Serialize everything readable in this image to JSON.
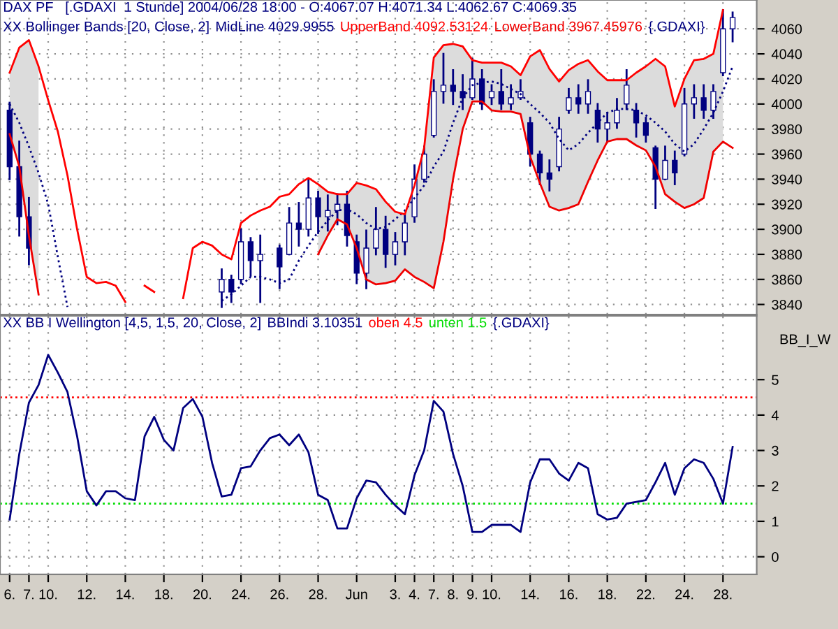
{
  "chart_data": [
    {
      "type": "candlestick",
      "title": "DAX PF   [.GDAXI  1 Stunde] 2004/06/28 18:00 - O:4067.07 H:4071.34 L:4062.67 C:4069.35",
      "subtitle": "XX Bollinger Bands [20, Close, 2]",
      "tick_labels": "y",
      "ylim": [
        3832,
        4083
      ],
      "yticks": [
        3840,
        3860,
        3880,
        3900,
        3920,
        3940,
        3960,
        3980,
        4000,
        4020,
        4040,
        4060
      ],
      "grid": true,
      "legend": "top",
      "series": [
        {
          "type": "candlestick",
          "color": "#000080",
          "ohlc": [
            [
              3995,
              4001,
              3940,
              3950
            ],
            [
              3950,
              3970,
              3895,
              3910
            ],
            [
              3910,
              3925,
              3872,
              3885
            ],
            null,
            null,
            null,
            null,
            null,
            null,
            null,
            null,
            null,
            null,
            null,
            null,
            null,
            null,
            null,
            null,
            null,
            null,
            null,
            [
              3850,
              3868,
              3838,
              3860
            ],
            [
              3860,
              3863,
              3842,
              3850
            ],
            [
              3860,
              3900,
              3857,
              3890
            ],
            [
              3890,
              3893,
              3863,
              3875
            ],
            [
              3875,
              3895,
              3842,
              3880
            ],
            null,
            [
              3885,
              3887,
              3853,
              3870
            ],
            [
              3880,
              3917,
              3880,
              3905
            ],
            [
              3905,
              3921,
              3887,
              3900
            ],
            [
              3900,
              3940,
              3895,
              3925
            ],
            [
              3925,
              3930,
              3897,
              3910
            ],
            [
              3910,
              3927,
              3899,
              3915
            ],
            [
              3915,
              3928,
              3904,
              3920
            ],
            [
              3920,
              3930,
              3887,
              3895
            ],
            [
              3890,
              3895,
              3857,
              3865
            ],
            [
              3865,
              3899,
              3853,
              3885
            ],
            [
              3885,
              3917,
              3880,
              3900
            ],
            [
              3900,
              3910,
              3870,
              3880
            ],
            [
              3880,
              3897,
              3872,
              3890
            ],
            [
              3890,
              3912,
              3880,
              3905
            ],
            [
              3910,
              3951,
              3906,
              3940
            ],
            [
              3940,
              3966,
              3938,
              3960
            ],
            [
              3975,
              4019,
              3974,
              4010
            ],
            [
              4010,
              4040,
              4001,
              4015
            ],
            [
              4015,
              4027,
              4000,
              4010
            ],
            [
              4010,
              4023,
              3996,
              4005
            ],
            [
              4005,
              4036,
              4004,
              4020
            ],
            [
              4020,
              4027,
              3996,
              4000
            ],
            [
              4005,
              4015,
              4000,
              4010
            ],
            [
              4010,
              4027,
              3996,
              4000
            ],
            [
              4000,
              4015,
              3996,
              4005
            ],
            [
              4005,
              4019,
              4004,
              4010
            ],
            [
              3985,
              3989,
              3951,
              3960
            ],
            [
              3960,
              3962,
              3936,
              3945
            ],
            [
              3945,
              3955,
              3931,
              3940
            ],
            [
              3950,
              3989,
              3947,
              3980
            ],
            [
              3995,
              4012,
              3993,
              4005
            ],
            [
              4005,
              4015,
              3993,
              4000
            ],
            [
              4000,
              4019,
              3993,
              4010
            ],
            [
              3995,
              4000,
              3970,
              3980
            ],
            [
              3980,
              3993,
              3970,
              3985
            ],
            [
              3985,
              4004,
              3981,
              3995
            ],
            [
              4000,
              4027,
              3996,
              4015
            ],
            [
              3995,
              4000,
              3974,
              3985
            ],
            [
              3985,
              3989,
              3970,
              3975
            ],
            [
              3965,
              3966,
              3917,
              3940
            ],
            [
              3940,
              3966,
              3940,
              3955
            ],
            [
              3955,
              3962,
              3936,
              3945
            ],
            [
              3960,
              4012,
              3959,
              4000
            ],
            [
              4000,
              4015,
              3989,
              4005
            ],
            [
              4005,
              4015,
              3989,
              3995
            ],
            [
              3995,
              4015,
              3989,
              4010
            ],
            [
              4025,
              4075,
              4023,
              4060
            ],
            [
              4060,
              4073,
              4050,
              4069
            ]
          ]
        },
        {
          "type": "line",
          "name": "MidLine 4029.9955",
          "color": "#000080",
          "line_style": "dotted",
          "values": [
            4000,
            3985,
            3966,
            3945,
            3920,
            3878,
            3838,
            null,
            null,
            null,
            null,
            null,
            null,
            null,
            null,
            null,
            null,
            null,
            null,
            null,
            null,
            null,
            3843,
            3848,
            3855,
            3862,
            3862,
            3860,
            3857,
            3860,
            3875,
            3887,
            3898,
            3907,
            3915,
            3916,
            3912,
            3905,
            3900,
            3902,
            3908,
            3915,
            3925,
            3935,
            3950,
            3962,
            3985,
            4005,
            4015,
            4017,
            4018,
            4016,
            4012,
            4008,
            4000,
            3993,
            3985,
            3972,
            3963,
            3968,
            3977,
            3985,
            3993,
            3996,
            3996,
            3995,
            3991,
            3985,
            3978,
            3968,
            3962,
            3968,
            3980,
            3993,
            4010,
            4030
          ],
          "upper": [
            4025,
            4045,
            4051,
            4030,
            null,
            null,
            null,
            null,
            null,
            null,
            null,
            null,
            null,
            null,
            null,
            null,
            null,
            null,
            null,
            null,
            null,
            null,
            null,
            null,
            null,
            null,
            null,
            null,
            null,
            null,
            null,
            null,
            3936,
            3930,
            3928,
            3928,
            3937,
            3935,
            3932,
            3922,
            3914,
            3912,
            3935,
            3965,
            4037,
            4047,
            4048,
            4046,
            4035,
            4033,
            4033,
            4033,
            4030,
            4023,
            4038,
            4043,
            4028,
            4018,
            4027,
            4032,
            4035,
            4026,
            4019,
            4019,
            4019,
            4025,
            4030,
            4036,
            4030,
            3998,
            4020,
            4035,
            4036,
            4040,
            4075,
            null
          ],
          "lower": [
            3976,
            3950,
            3895,
            3848,
            null,
            null,
            null,
            null,
            null,
            null,
            null,
            null,
            null,
            null,
            null,
            null,
            null,
            null,
            null,
            null,
            null,
            null,
            null,
            null,
            null,
            null,
            null,
            null,
            null,
            null,
            null,
            null,
            3880,
            3895,
            3908,
            3904,
            3885,
            3860,
            3856,
            3857,
            3859,
            3868,
            3862,
            3858,
            3853,
            3890,
            3940,
            3980,
            4002,
            4002,
            3995,
            3994,
            3994,
            3992,
            3958,
            3937,
            3918,
            3915,
            3917,
            3920,
            3938,
            3955,
            3970,
            3972,
            3972,
            3967,
            3963,
            3950,
            3928,
            3922,
            3917,
            3920,
            3925,
            3962,
            3970,
            null
          ]
        },
        {
          "type": "line",
          "name": "UpperBand 4092.53124",
          "color": "#ff0000",
          "values": [
            4025,
            4045,
            4051,
            4030,
            4003,
            3978,
            3943,
            3900,
            3862,
            3857,
            3858,
            3855,
            3842,
            null,
            3855,
            3850,
            null,
            null,
            3845,
            3885,
            3890,
            3887,
            3880,
            3876,
            3905,
            3911,
            3915,
            3918,
            3926,
            3928,
            3936,
            3941,
            3936,
            3930,
            3928,
            3928,
            3937,
            3935,
            3932,
            3922,
            3914,
            3912,
            3935,
            3965,
            4037,
            4047,
            4048,
            4046,
            4035,
            4033,
            4033,
            4033,
            4030,
            4023,
            4038,
            4043,
            4028,
            4018,
            4027,
            4032,
            4035,
            4026,
            4019,
            4019,
            4019,
            4025,
            4030,
            4036,
            4030,
            3998,
            4020,
            4035,
            4036,
            4040,
            4075,
            null
          ]
        },
        {
          "type": "line",
          "name": "LowerBand 3967.45976",
          "color": "#f00000",
          "values": [
            3976,
            3950,
            3895,
            3848,
            null,
            null,
            null,
            null,
            null,
            null,
            null,
            null,
            null,
            null,
            null,
            null,
            null,
            null,
            null,
            null,
            null,
            null,
            null,
            null,
            null,
            null,
            null,
            null,
            null,
            null,
            null,
            null,
            3880,
            3895,
            3908,
            3904,
            3885,
            3860,
            3856,
            3857,
            3859,
            3868,
            3862,
            3858,
            3853,
            3890,
            3940,
            3980,
            4002,
            4002,
            3995,
            3994,
            3994,
            3992,
            3958,
            3937,
            3918,
            3915,
            3917,
            3920,
            3938,
            3955,
            3970,
            3972,
            3972,
            3967,
            3963,
            3950,
            3928,
            3922,
            3917,
            3920,
            3925,
            3962,
            3970,
            3965
          ]
        }
      ],
      "annotations": [
        "{.GDAXI}"
      ]
    },
    {
      "type": "line",
      "title": "XX BB I Wellington [4,5, 1,5, 20, Close, 2]",
      "ylabel": "BB_I_W",
      "categories": [
        "6.",
        null,
        "7.",
        null,
        "10.",
        null,
        null,
        null,
        "12.",
        null,
        null,
        null,
        "14.",
        null,
        null,
        null,
        "18.",
        null,
        null,
        null,
        "20.",
        null,
        null,
        null,
        "24.",
        null,
        null,
        null,
        "26.",
        null,
        null,
        null,
        "28.",
        null,
        null,
        null,
        "Jun",
        null,
        null,
        null,
        "3.",
        null,
        "4.",
        null,
        "7.",
        null,
        "8.",
        null,
        "9.",
        null,
        "10.",
        null,
        null,
        null,
        "14.",
        null,
        null,
        null,
        "16.",
        null,
        null,
        null,
        "18.",
        null,
        null,
        null,
        "22.",
        null,
        null,
        null,
        "24.",
        null,
        null,
        null,
        "28.",
        null
      ],
      "ylim": [
        -0.5,
        6.8
      ],
      "yticks": [
        0,
        1,
        2,
        3,
        4,
        5
      ],
      "grid": true,
      "legend": "top",
      "series": [
        {
          "name": "BBIndi 3.10351",
          "color": "#000080",
          "values": [
            1.05,
            2.9,
            4.35,
            4.85,
            5.7,
            5.2,
            4.65,
            3.4,
            1.85,
            1.45,
            1.85,
            1.85,
            1.65,
            1.6,
            3.4,
            3.95,
            3.3,
            3.0,
            4.2,
            4.45,
            3.95,
            2.65,
            1.7,
            1.75,
            2.5,
            2.55,
            3.0,
            3.35,
            3.45,
            3.15,
            3.45,
            2.95,
            1.75,
            1.6,
            0.8,
            0.8,
            1.65,
            2.15,
            2.1,
            1.75,
            1.45,
            1.2,
            2.3,
            3.0,
            4.4,
            4.1,
            2.9,
            2.0,
            0.7,
            0.7,
            0.9,
            0.9,
            0.9,
            0.7,
            2.1,
            2.75,
            2.75,
            2.35,
            2.15,
            2.65,
            2.5,
            1.2,
            1.05,
            1.1,
            1.5,
            1.55,
            1.6,
            2.1,
            2.65,
            1.75,
            2.5,
            2.75,
            2.65,
            2.2,
            1.5,
            3.1
          ]
        }
      ],
      "ref_lines": [
        {
          "axis": "y",
          "value": 4.5,
          "label": "oben 4.5",
          "color": "#ff0000",
          "line_style": "dotted"
        },
        {
          "axis": "y",
          "value": 1.5,
          "label": "unten 1.5",
          "color": "#00dd00",
          "line_style": "dotted"
        }
      ],
      "annotations": [
        "{.GDAXI}"
      ]
    }
  ]
}
